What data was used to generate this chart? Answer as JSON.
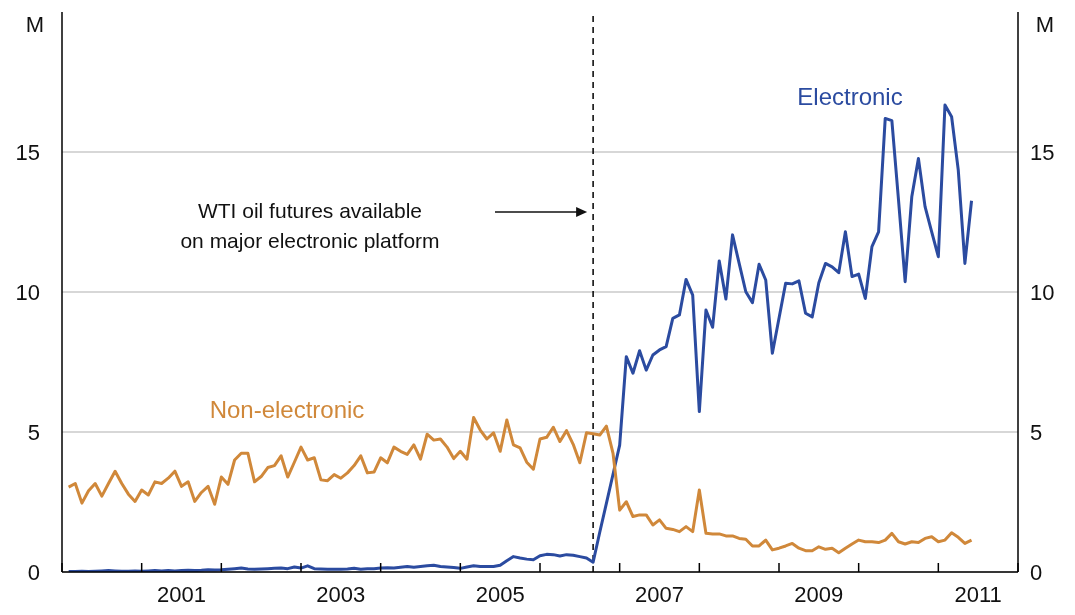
{
  "chart_data": {
    "type": "line",
    "ylabel": "M",
    "y2label": "M",
    "x": [
      "2000-02",
      "2000-03",
      "2000-04",
      "2000-05",
      "2000-06",
      "2000-07",
      "2000-08",
      "2000-09",
      "2000-10",
      "2000-11",
      "2000-12",
      "2001-01",
      "2001-02",
      "2001-03",
      "2001-04",
      "2001-05",
      "2001-06",
      "2001-07",
      "2001-08",
      "2001-09",
      "2001-10",
      "2001-11",
      "2001-12",
      "2002-01",
      "2002-02",
      "2002-03",
      "2002-04",
      "2002-05",
      "2002-06",
      "2002-07",
      "2002-08",
      "2002-09",
      "2002-10",
      "2002-11",
      "2002-12",
      "2003-01",
      "2003-02",
      "2003-03",
      "2003-04",
      "2003-05",
      "2003-06",
      "2003-07",
      "2003-08",
      "2003-09",
      "2003-10",
      "2003-11",
      "2003-12",
      "2004-01",
      "2004-02",
      "2004-03",
      "2004-04",
      "2004-05",
      "2004-06",
      "2004-07",
      "2004-08",
      "2004-09",
      "2004-10",
      "2004-11",
      "2004-12",
      "2005-01",
      "2005-02",
      "2005-03",
      "2005-04",
      "2005-05",
      "2005-06",
      "2005-07",
      "2005-08",
      "2005-09",
      "2005-10",
      "2005-11",
      "2005-12",
      "2006-01",
      "2006-02",
      "2006-03",
      "2006-04",
      "2006-05",
      "2006-06",
      "2006-07",
      "2006-08",
      "2006-09",
      "2006-10",
      "2006-11",
      "2006-12",
      "2007-01",
      "2007-02",
      "2007-03",
      "2007-04",
      "2007-05",
      "2007-06",
      "2007-07",
      "2007-08",
      "2007-09",
      "2007-10",
      "2007-11",
      "2007-12",
      "2008-01",
      "2008-02",
      "2008-03",
      "2008-04",
      "2008-05",
      "2008-06",
      "2008-07",
      "2008-08",
      "2008-09",
      "2008-10",
      "2008-11",
      "2008-12",
      "2009-01",
      "2009-02",
      "2009-03",
      "2009-04",
      "2009-05",
      "2009-06",
      "2009-07",
      "2009-08",
      "2009-09",
      "2009-10",
      "2009-11",
      "2009-12",
      "2010-01",
      "2010-02",
      "2010-03",
      "2010-04",
      "2010-05",
      "2010-06",
      "2010-07",
      "2010-08",
      "2010-09",
      "2010-10",
      "2010-11",
      "2010-12",
      "2011-01",
      "2011-02",
      "2011-03",
      "2011-04",
      "2011-05",
      "2011-06"
    ],
    "series": [
      {
        "name": "Electronic",
        "color": "#2b4ba0",
        "values": [
          0.02,
          0.02,
          0.03,
          0.02,
          0.03,
          0.04,
          0.05,
          0.04,
          0.03,
          0.03,
          0.04,
          0.03,
          0.04,
          0.05,
          0.04,
          0.05,
          0.04,
          0.05,
          0.06,
          0.05,
          0.06,
          0.08,
          0.07,
          0.08,
          0.1,
          0.12,
          0.14,
          0.11,
          0.1,
          0.11,
          0.12,
          0.13,
          0.14,
          0.12,
          0.18,
          0.14,
          0.22,
          0.12,
          0.11,
          0.1,
          0.1,
          0.1,
          0.11,
          0.13,
          0.1,
          0.12,
          0.12,
          0.14,
          0.15,
          0.14,
          0.17,
          0.2,
          0.17,
          0.2,
          0.22,
          0.24,
          0.2,
          0.18,
          0.16,
          0.13,
          0.18,
          0.22,
          0.2,
          0.2,
          0.2,
          0.24,
          0.4,
          0.55,
          0.5,
          0.46,
          0.44,
          0.58,
          0.63,
          0.62,
          0.57,
          0.62,
          0.6,
          0.55,
          0.5,
          0.35,
          1.42,
          2.45,
          3.49,
          4.53,
          7.69,
          7.1,
          7.9,
          7.21,
          7.75,
          7.93,
          8.05,
          9.06,
          9.18,
          10.45,
          9.89,
          5.73,
          9.36,
          8.74,
          11.11,
          9.75,
          12.04,
          11.02,
          10.01,
          9.62,
          10.99,
          10.43,
          7.81,
          9.06,
          10.31,
          10.29,
          10.4,
          9.24,
          9.11,
          10.33,
          11.02,
          10.9,
          10.69,
          12.15,
          10.55,
          10.64,
          9.77,
          11.62,
          12.15,
          16.2,
          16.12,
          13.29,
          10.37,
          13.4,
          14.77,
          13.05,
          12.15,
          11.26,
          16.68,
          16.26,
          14.36,
          11.02,
          13.26
        ]
      },
      {
        "name": "Non-electronic",
        "color": "#d0883a",
        "values": [
          3.03,
          3.16,
          2.46,
          2.9,
          3.16,
          2.71,
          3.16,
          3.6,
          3.16,
          2.78,
          2.52,
          2.93,
          2.75,
          3.22,
          3.16,
          3.35,
          3.6,
          3.06,
          3.22,
          2.52,
          2.84,
          3.06,
          2.42,
          3.39,
          3.13,
          4.0,
          4.24,
          4.24,
          3.22,
          3.41,
          3.73,
          3.8,
          4.15,
          3.39,
          3.92,
          4.46,
          4.0,
          4.08,
          3.29,
          3.26,
          3.48,
          3.35,
          3.54,
          3.8,
          4.15,
          3.54,
          3.57,
          4.08,
          3.9,
          4.46,
          4.31,
          4.2,
          4.54,
          4.03,
          4.92,
          4.71,
          4.75,
          4.46,
          4.05,
          4.31,
          4.03,
          5.52,
          5.07,
          4.75,
          4.97,
          4.31,
          5.43,
          4.54,
          4.43,
          3.92,
          3.67,
          4.75,
          4.81,
          5.17,
          4.66,
          5.05,
          4.56,
          3.9,
          4.97,
          4.94,
          4.89,
          5.21,
          4.24,
          2.21,
          2.51,
          1.98,
          2.04,
          2.04,
          1.68,
          1.86,
          1.56,
          1.52,
          1.44,
          1.62,
          1.44,
          2.93,
          1.38,
          1.36,
          1.36,
          1.29,
          1.29,
          1.2,
          1.17,
          0.93,
          0.93,
          1.14,
          0.79,
          0.85,
          0.93,
          1.02,
          0.85,
          0.76,
          0.76,
          0.9,
          0.81,
          0.85,
          0.69,
          0.85,
          1.0,
          1.14,
          1.08,
          1.08,
          1.05,
          1.14,
          1.38,
          1.08,
          1.0,
          1.08,
          1.05,
          1.2,
          1.26,
          1.08,
          1.14,
          1.4,
          1.24,
          1.02,
          1.14
        ]
      }
    ],
    "xlim": [
      "2000-01",
      "2012-01"
    ],
    "xticks": [
      {
        "value": "2000-01",
        "label": null
      },
      {
        "value": "2001-01",
        "label": null
      },
      {
        "value": "2001-07",
        "label": "2001"
      },
      {
        "value": "2002-01",
        "label": null
      },
      {
        "value": "2003-01",
        "label": null
      },
      {
        "value": "2003-07",
        "label": "2003"
      },
      {
        "value": "2004-01",
        "label": null
      },
      {
        "value": "2005-01",
        "label": null
      },
      {
        "value": "2005-07",
        "label": "2005"
      },
      {
        "value": "2006-01",
        "label": null
      },
      {
        "value": "2007-01",
        "label": null
      },
      {
        "value": "2007-07",
        "label": "2007"
      },
      {
        "value": "2008-01",
        "label": null
      },
      {
        "value": "2009-01",
        "label": null
      },
      {
        "value": "2009-07",
        "label": "2009"
      },
      {
        "value": "2010-01",
        "label": null
      },
      {
        "value": "2011-01",
        "label": null
      },
      {
        "value": "2011-07",
        "label": "2011"
      },
      {
        "value": "2012-01",
        "label": null
      }
    ],
    "ylim": [
      0,
      20
    ],
    "yticks": [
      0,
      5,
      10,
      15
    ],
    "y2lim": [
      0,
      20
    ],
    "y2ticks": [
      0,
      5,
      10,
      15
    ],
    "grid": "y",
    "line_style": "solid",
    "ref_lines": [
      {
        "axis": "x",
        "value": "2006-09",
        "label": "WTI oil futures available\non major electronic platform",
        "color": "#000000",
        "line_style": "dashed"
      }
    ]
  }
}
